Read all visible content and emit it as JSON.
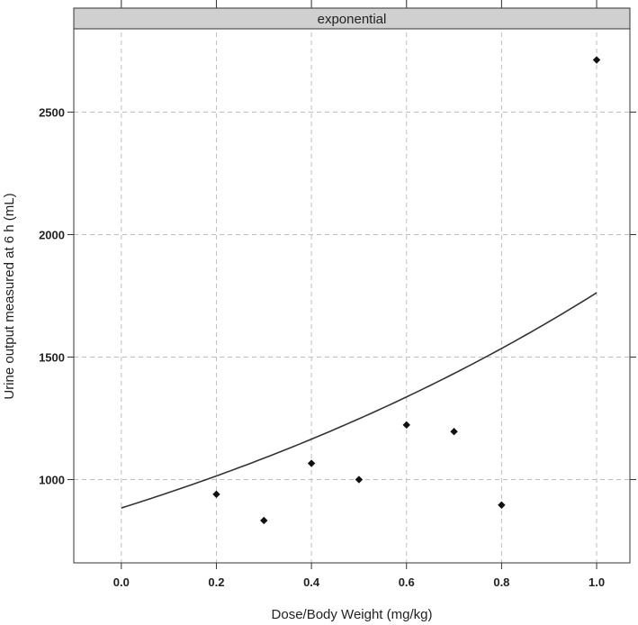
{
  "chart_data": {
    "type": "scatter",
    "title": "",
    "strip_label": "exponential",
    "xlabel": "Dose/Body Weight (mg/kg)",
    "ylabel": "Urine output measured at 6 h (mL)",
    "xlim": [
      -0.1,
      1.07
    ],
    "ylim": [
      660,
      2840
    ],
    "x_ticks": [
      0.0,
      0.2,
      0.4,
      0.6,
      0.8,
      1.0
    ],
    "x_tick_labels": [
      "0.0",
      "0.2",
      "0.4",
      "0.6",
      "0.8",
      "1.0"
    ],
    "y_ticks": [
      1000,
      1500,
      2000,
      2500
    ],
    "y_tick_labels": [
      "1000",
      "1500",
      "2000",
      "2500"
    ],
    "grid": true,
    "points": {
      "x": [
        0.2,
        0.3,
        0.4,
        0.5,
        0.6,
        0.7,
        0.8,
        1.0
      ],
      "y": [
        940,
        833,
        1066,
        1000,
        1223,
        1196,
        896,
        2713
      ]
    },
    "fit_curve": {
      "model": "exponential",
      "x_range": [
        0.0,
        1.0
      ],
      "a": 884,
      "b": 0.69
    },
    "colors": {
      "points": "#111111",
      "curve": "#333333",
      "grid": "#bfbfbf",
      "strip_fill": "#d0d0d0",
      "frame": "#333333"
    }
  }
}
